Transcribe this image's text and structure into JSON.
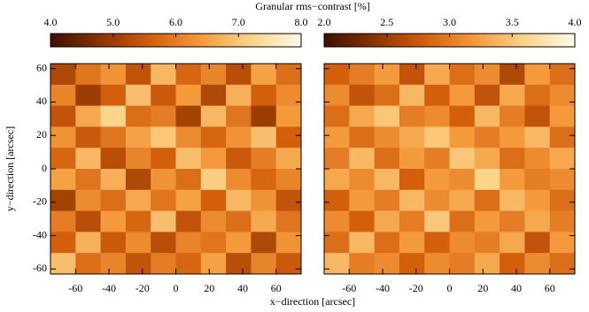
{
  "chart_data": [
    {
      "type": "heatmap",
      "title": "Granular rms−contrast  [%]",
      "x_label": "x−direction  [arcsec]",
      "y_label": "y−direction  [arcsec]",
      "xlim": [
        -75,
        75
      ],
      "ylim": [
        -63,
        63
      ],
      "xticks": [
        -60,
        -40,
        -20,
        0,
        20,
        40,
        60
      ],
      "yticks": [
        -60,
        -40,
        -20,
        0,
        20,
        40,
        60
      ],
      "clim": [
        4.0,
        8.0
      ],
      "cticks": [
        {
          "value": 4,
          "label": "4.0"
        },
        {
          "value": 5,
          "label": "5.0"
        },
        {
          "value": 6,
          "label": "6.0"
        },
        {
          "value": 7,
          "label": "7.0"
        },
        {
          "value": 8,
          "label": "8.0"
        }
      ],
      "colormap": [
        "#3d0f00",
        "#8a3300",
        "#d35f0d",
        "#f49a3c",
        "#fcd48a",
        "#fffbe8"
      ],
      "values": [
        [
          5.2,
          5.9,
          6.3,
          5.4,
          6.8,
          5.7,
          6.1,
          5.3,
          6.5,
          5.8
        ],
        [
          6.1,
          5.0,
          5.6,
          6.9,
          5.5,
          6.4,
          5.2,
          6.7,
          5.6,
          6.2
        ],
        [
          5.4,
          6.6,
          7.2,
          5.8,
          6.0,
          5.1,
          6.8,
          5.9,
          5.0,
          6.4
        ],
        [
          6.3,
          5.5,
          5.9,
          6.5,
          7.0,
          6.2,
          5.7,
          6.3,
          6.9,
          5.6
        ],
        [
          5.7,
          6.8,
          5.3,
          6.1,
          5.6,
          6.9,
          6.4,
          5.5,
          6.0,
          6.6
        ],
        [
          6.5,
          5.9,
          6.7,
          5.2,
          6.3,
          5.8,
          7.1,
          6.2,
          5.7,
          6.1
        ],
        [
          5.1,
          6.2,
          5.8,
          6.6,
          5.9,
          6.5,
          5.6,
          6.8,
          6.3,
          5.4
        ],
        [
          6.0,
          5.3,
          6.4,
          5.7,
          6.9,
          5.4,
          6.2,
          5.8,
          6.6,
          5.9
        ],
        [
          5.6,
          6.7,
          5.5,
          6.2,
          5.3,
          6.1,
          5.9,
          6.4,
          5.2,
          6.3
        ],
        [
          6.9,
          5.8,
          6.1,
          5.4,
          6.0,
          5.7,
          6.5,
          5.3,
          6.1,
          5.5
        ]
      ]
    },
    {
      "type": "heatmap",
      "xlim": [
        -75,
        75
      ],
      "ylim": [
        -63,
        63
      ],
      "xticks": [
        -60,
        -40,
        -20,
        0,
        20,
        40,
        60
      ],
      "yticks": [
        -60,
        -40,
        -20,
        0,
        20,
        40,
        60
      ],
      "clim": [
        2.0,
        4.0
      ],
      "cticks": [
        {
          "value": 2,
          "label": "2.0"
        },
        2.5,
        {
          "value": 3,
          "label": "3.0"
        },
        3.5,
        {
          "value": 4,
          "label": "4.0"
        }
      ],
      "colormap": [
        "#3d0f00",
        "#8a3300",
        "#d35f0d",
        "#f49a3c",
        "#fcd48a",
        "#fffbe8"
      ],
      "values": [
        [
          2.8,
          3.0,
          3.2,
          2.7,
          3.3,
          2.9,
          3.1,
          2.6,
          3.2,
          2.9
        ],
        [
          3.1,
          2.7,
          2.9,
          3.4,
          2.8,
          3.2,
          2.7,
          3.3,
          2.9,
          3.1
        ],
        [
          2.9,
          3.3,
          3.5,
          3.0,
          3.1,
          2.8,
          3.4,
          3.0,
          2.7,
          3.2
        ],
        [
          3.2,
          2.9,
          3.1,
          3.3,
          3.5,
          3.2,
          3.0,
          3.2,
          3.4,
          2.9
        ],
        [
          3.0,
          3.4,
          2.9,
          3.2,
          3.0,
          3.5,
          3.3,
          2.9,
          3.1,
          3.3
        ],
        [
          3.3,
          3.1,
          3.4,
          2.8,
          3.2,
          3.1,
          3.6,
          3.2,
          3.0,
          3.1
        ],
        [
          2.8,
          3.2,
          3.0,
          3.4,
          3.1,
          3.3,
          2.9,
          3.4,
          3.2,
          2.9
        ],
        [
          3.1,
          2.8,
          3.3,
          3.0,
          3.5,
          2.9,
          3.2,
          3.0,
          3.3,
          3.0
        ],
        [
          2.9,
          3.4,
          2.9,
          3.2,
          2.8,
          3.1,
          3.0,
          3.3,
          2.7,
          3.2
        ],
        [
          3.4,
          3.0,
          3.1,
          2.8,
          3.1,
          3.0,
          3.3,
          2.8,
          3.1,
          2.9
        ]
      ]
    }
  ]
}
